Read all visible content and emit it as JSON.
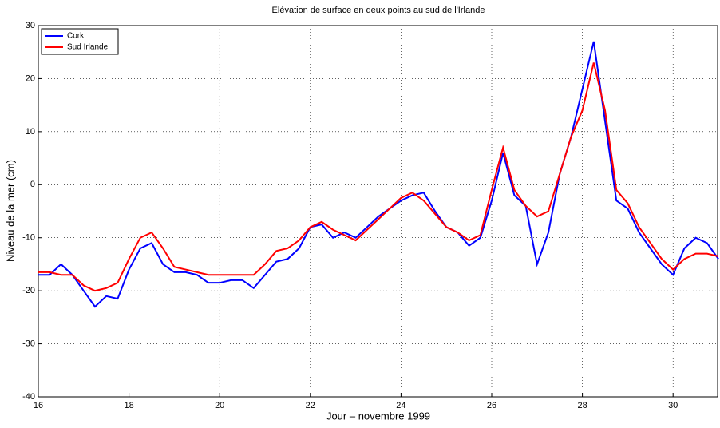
{
  "chart_data": {
    "type": "line",
    "title": "Elévation de surface en deux points au sud de l'Irlande",
    "xlabel": "Jour – novembre 1999",
    "ylabel": "Niveau de la mer (cm)",
    "x": [
      16,
      16.25,
      16.5,
      16.75,
      17,
      17.25,
      17.5,
      17.75,
      18,
      18.25,
      18.5,
      18.75,
      19,
      19.25,
      19.5,
      19.75,
      20,
      20.25,
      20.5,
      20.75,
      21,
      21.25,
      21.5,
      21.75,
      22,
      22.25,
      22.5,
      22.75,
      23,
      23.25,
      23.5,
      23.75,
      24,
      24.25,
      24.5,
      24.75,
      25,
      25.25,
      25.5,
      25.75,
      26,
      26.25,
      26.5,
      26.75,
      27,
      27.25,
      27.5,
      27.75,
      28,
      28.25,
      28.5,
      28.75,
      29,
      29.25,
      29.5,
      29.75,
      30,
      30.25,
      30.5,
      30.75,
      31
    ],
    "series": [
      {
        "name": "Cork",
        "color": "#0000ff",
        "values": [
          -17,
          -17,
          -15,
          -17,
          -20,
          -23,
          -21,
          -21.5,
          -16,
          -12,
          -11,
          -15,
          -16.5,
          -16.5,
          -17,
          -18.5,
          -18.5,
          -18,
          -18,
          -19.5,
          -17,
          -14.5,
          -14,
          -12,
          -8,
          -7.5,
          -10,
          -9,
          -10,
          -8,
          -6,
          -4.5,
          -3,
          -2,
          -1.5,
          -5,
          -8,
          -9,
          -11.5,
          -10,
          -3,
          6,
          -2,
          -4,
          -15,
          -9,
          2,
          9,
          18,
          27,
          12,
          -3,
          -4.5,
          -9,
          -12,
          -15,
          -17,
          -12,
          -10,
          -11,
          -14
        ]
      },
      {
        "name": "Sud Irlande",
        "color": "#ff0000",
        "values": [
          -16.5,
          -16.5,
          -17,
          -17,
          -19,
          -20,
          -19.5,
          -18.5,
          -14,
          -10,
          -9,
          -12,
          -15.5,
          -16,
          -16.5,
          -17,
          -17,
          -17,
          -17,
          -17,
          -15,
          -12.5,
          -12,
          -10.5,
          -8,
          -7,
          -8.5,
          -9.5,
          -10.5,
          -8.5,
          -6.5,
          -4.5,
          -2.5,
          -1.5,
          -3,
          -5.5,
          -8,
          -9,
          -10.5,
          -9.5,
          -1,
          7,
          -1,
          -4,
          -6,
          -5,
          2,
          9,
          14,
          23,
          14,
          -1,
          -3.5,
          -8,
          -11,
          -14,
          -16,
          -14,
          -13,
          -13,
          -13.5
        ]
      }
    ],
    "xlim": [
      16,
      31
    ],
    "xticks": [
      16,
      18,
      20,
      22,
      24,
      26,
      28,
      30
    ],
    "ylim": [
      -40,
      30
    ],
    "yticks": [
      -40,
      -30,
      -20,
      -10,
      0,
      10,
      20,
      30
    ],
    "grid": true,
    "legend": "upper left"
  }
}
